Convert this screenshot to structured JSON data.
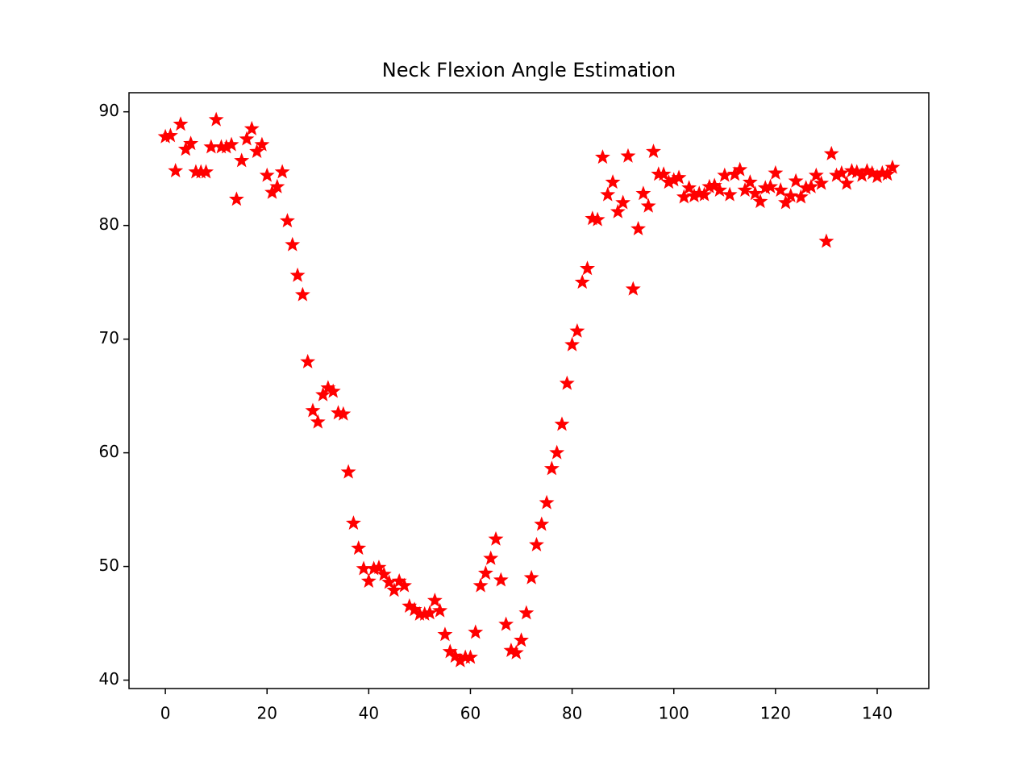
{
  "chart_data": {
    "type": "scatter",
    "title": "Neck Flexion Angle Estimation",
    "color": "red",
    "marker": "star",
    "x": [
      0,
      1,
      2,
      3,
      4,
      5,
      6,
      7,
      8,
      9,
      10,
      11,
      12,
      13,
      14,
      15,
      16,
      17,
      18,
      19,
      20,
      21,
      22,
      23,
      24,
      25,
      26,
      27,
      28,
      29,
      30,
      31,
      32,
      33,
      34,
      35,
      36,
      37,
      38,
      39,
      40,
      41,
      42,
      43,
      44,
      45,
      46,
      47,
      48,
      49,
      50,
      51,
      52,
      53,
      54,
      55,
      56,
      57,
      58,
      59,
      60,
      61,
      62,
      63,
      64,
      65,
      66,
      67,
      68,
      69,
      70,
      71,
      72,
      73,
      74,
      75,
      76,
      77,
      78,
      79,
      80,
      81,
      82,
      83,
      84,
      85,
      86,
      87,
      88,
      89,
      90,
      91,
      92,
      93,
      94,
      95,
      96,
      97,
      98,
      99,
      100,
      101,
      102,
      103,
      104,
      105,
      106,
      107,
      108,
      109,
      110,
      111,
      112,
      113,
      114,
      115,
      116,
      117,
      118,
      119,
      120,
      121,
      122,
      123,
      124,
      125,
      126,
      127,
      128,
      129,
      130,
      131,
      132,
      133,
      134,
      135,
      136,
      137,
      138,
      139,
      140,
      141,
      142,
      143
    ],
    "values": [
      87.8,
      87.9,
      84.8,
      88.9,
      86.7,
      87.2,
      84.7,
      84.7,
      84.7,
      86.9,
      89.3,
      86.9,
      86.9,
      87.1,
      82.3,
      85.7,
      87.6,
      88.5,
      86.5,
      87.1,
      84.4,
      82.9,
      83.4,
      84.7,
      80.4,
      78.3,
      75.6,
      73.9,
      68.0,
      63.7,
      62.7,
      65.1,
      65.7,
      65.4,
      63.5,
      63.4,
      58.3,
      53.8,
      51.6,
      49.8,
      48.7,
      49.8,
      49.9,
      49.3,
      48.6,
      47.9,
      48.7,
      48.3,
      46.5,
      46.2,
      45.8,
      45.8,
      45.9,
      47.0,
      46.1,
      44.0,
      42.5,
      42.1,
      41.7,
      42.0,
      42.0,
      44.2,
      48.3,
      49.4,
      50.7,
      52.4,
      48.8,
      44.9,
      42.6,
      42.4,
      43.5,
      45.9,
      49.0,
      51.9,
      53.7,
      55.6,
      58.6,
      60.0,
      62.5,
      66.1,
      69.5,
      70.7,
      75.0,
      76.2,
      80.6,
      80.5,
      86.0,
      82.7,
      83.8,
      81.2,
      82.0,
      86.1,
      74.4,
      79.7,
      82.8,
      81.7,
      86.5,
      84.5,
      84.5,
      83.8,
      84.0,
      84.2,
      82.5,
      83.3,
      82.6,
      82.8,
      82.7,
      83.4,
      83.5,
      83.1,
      84.4,
      82.7,
      84.5,
      84.9,
      83.1,
      83.8,
      82.8,
      82.1,
      83.3,
      83.4,
      84.6,
      83.1,
      82.0,
      82.6,
      83.9,
      82.5,
      83.3,
      83.4,
      84.4,
      83.7,
      78.6,
      86.3,
      84.4,
      84.6,
      83.7,
      84.8,
      84.7,
      84.4,
      84.8,
      84.6,
      84.3,
      84.6,
      84.5,
      85.1
    ],
    "xlim": [
      -7.15,
      150.15
    ],
    "xticks": [
      0,
      20,
      40,
      60,
      80,
      100,
      120,
      140
    ],
    "ylim": [
      39.26,
      91.68
    ],
    "yticks": [
      40,
      50,
      60,
      70,
      80,
      90
    ]
  }
}
